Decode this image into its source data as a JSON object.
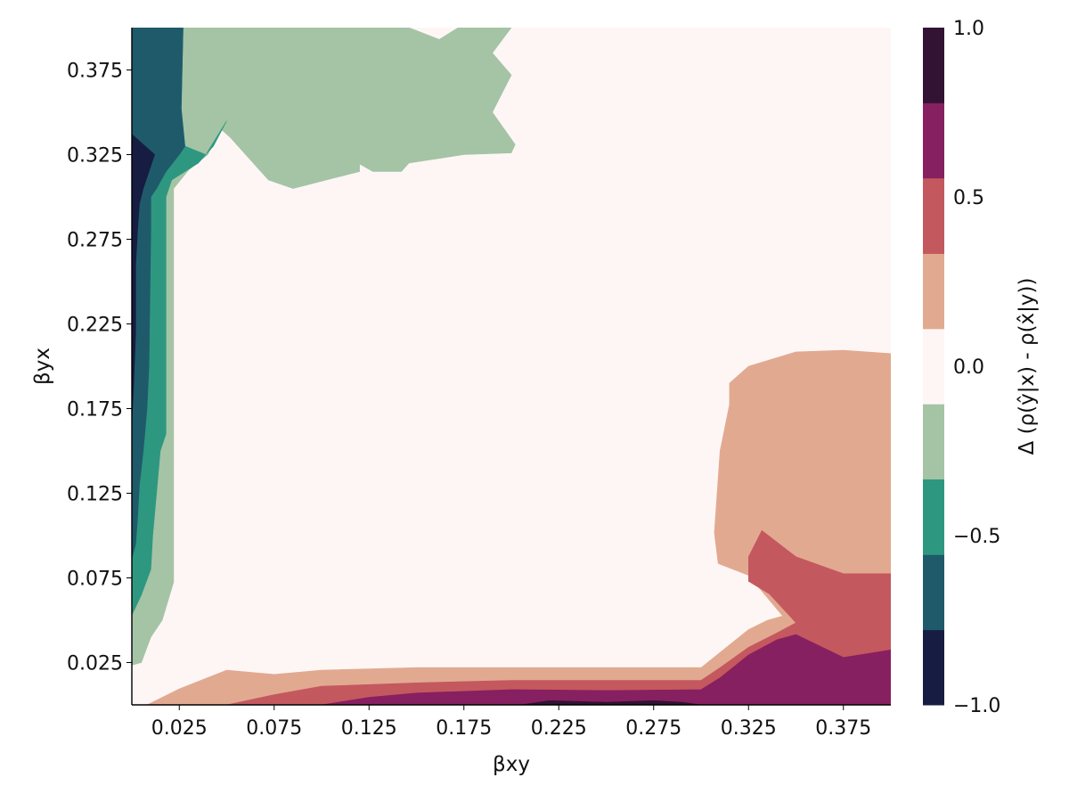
{
  "chart_data": {
    "type": "contour",
    "xlabel": "βxy",
    "ylabel": "βyx",
    "xlim": [
      0.0,
      0.4
    ],
    "ylim": [
      0.0,
      0.4
    ],
    "x_ticks": [
      "0.025",
      "0.075",
      "0.125",
      "0.175",
      "0.225",
      "0.275",
      "0.325",
      "0.375"
    ],
    "y_ticks": [
      "0.025",
      "0.075",
      "0.125",
      "0.175",
      "0.225",
      "0.275",
      "0.325",
      "0.375"
    ],
    "colorbar": {
      "label": "Δ (ρ(ŷ|x) - ρ(x̂|y))",
      "range": [
        -1.0,
        1.0
      ],
      "tick_labels": [
        "−1.0",
        "−0.5",
        "0.0",
        "0.5",
        "1.0"
      ],
      "levels": [
        -1.0,
        -0.778,
        -0.556,
        -0.333,
        -0.111,
        0.111,
        0.333,
        0.556,
        0.778,
        1.0
      ],
      "colors": [
        "#171c42",
        "#1f5a6b",
        "#2e9780",
        "#a4c4a5",
        "#fef6f5",
        "#e2a991",
        "#c4585f",
        "#872060",
        "#331334"
      ]
    },
    "regions": [
      {
        "name": "upper-green",
        "level": -0.222,
        "points": [
          [
            0.083,
            0.4
          ],
          [
            0.094,
            0.34
          ],
          [
            0.102,
            0.331
          ],
          [
            0.127,
            0.315
          ],
          [
            0.142,
            0.315
          ],
          [
            0.146,
            0.32
          ],
          [
            0.175,
            0.325
          ],
          [
            0.2,
            0.326
          ],
          [
            0.202,
            0.331
          ],
          [
            0.19,
            0.35
          ],
          [
            0.2,
            0.372
          ],
          [
            0.19,
            0.385
          ],
          [
            0.2,
            0.4
          ],
          [
            0.2,
            0.4
          ],
          [
            0.172,
            0.4
          ],
          [
            0.162,
            0.393
          ],
          [
            0.146,
            0.4
          ]
        ]
      },
      {
        "name": "upper-teal",
        "level": -0.444,
        "points": [
          [
            0.027,
            0.4
          ],
          [
            0.026,
            0.352
          ],
          [
            0.028,
            0.33
          ],
          [
            0.039,
            0.325
          ],
          [
            0.05,
            0.345
          ],
          [
            0.07,
            0.332
          ],
          [
            0.1,
            0.33
          ],
          [
            0.102,
            0.34
          ],
          [
            0.094,
            0.35
          ],
          [
            0.081,
            0.355
          ],
          [
            0.073,
            0.36
          ],
          [
            0.072,
            0.4
          ]
        ]
      },
      {
        "name": "left-green-strip",
        "level": -0.222,
        "points": [
          [
            0.0,
            0.0235
          ],
          [
            0.0,
            0.4
          ],
          [
            0.12,
            0.4
          ],
          [
            0.12,
            0.315
          ],
          [
            0.085,
            0.305
          ],
          [
            0.072,
            0.31
          ],
          [
            0.06,
            0.325
          ],
          [
            0.052,
            0.335
          ],
          [
            0.047,
            0.34
          ],
          [
            0.04,
            0.325
          ],
          [
            0.03,
            0.316
          ],
          [
            0.022,
            0.305
          ],
          [
            0.022,
            0.25
          ],
          [
            0.022,
            0.0725
          ],
          [
            0.02,
            0.065
          ],
          [
            0.016,
            0.05
          ],
          [
            0.01,
            0.04
          ],
          [
            0.005,
            0.025
          ]
        ]
      },
      {
        "name": "left-teal-strip",
        "level": -0.444,
        "points": [
          [
            0.0,
            0.053
          ],
          [
            0.0,
            0.4
          ],
          [
            0.027,
            0.4
          ],
          [
            0.026,
            0.352
          ],
          [
            0.028,
            0.33
          ],
          [
            0.039,
            0.325
          ],
          [
            0.05,
            0.345
          ],
          [
            0.043,
            0.33
          ],
          [
            0.035,
            0.32
          ],
          [
            0.021,
            0.31
          ],
          [
            0.018,
            0.3
          ],
          [
            0.018,
            0.16
          ],
          [
            0.015,
            0.15
          ],
          [
            0.013,
            0.125
          ],
          [
            0.011,
            0.1
          ],
          [
            0.01,
            0.08
          ],
          [
            0.005,
            0.065
          ]
        ]
      },
      {
        "name": "left-dark-teal-strip",
        "level": -0.667,
        "points": [
          [
            0.0,
            0.0865
          ],
          [
            0.0,
            0.4
          ],
          [
            0.027,
            0.4
          ],
          [
            0.026,
            0.352
          ],
          [
            0.028,
            0.33
          ],
          [
            0.025,
            0.325
          ],
          [
            0.018,
            0.315
          ],
          [
            0.013,
            0.305
          ],
          [
            0.01,
            0.3
          ],
          [
            0.01,
            0.28
          ],
          [
            0.009,
            0.2
          ],
          [
            0.008,
            0.175
          ],
          [
            0.006,
            0.15
          ],
          [
            0.004,
            0.13
          ],
          [
            0.003,
            0.11
          ],
          [
            0.002,
            0.095
          ]
        ]
      },
      {
        "name": "left-navy-strip",
        "level": -0.889,
        "points": [
          [
            0.0,
            0.167
          ],
          [
            0.0,
            0.337
          ],
          [
            0.006,
            0.331
          ],
          [
            0.012,
            0.325
          ],
          [
            0.009,
            0.315
          ],
          [
            0.006,
            0.305
          ],
          [
            0.004,
            0.296
          ],
          [
            0.003,
            0.28
          ],
          [
            0.002,
            0.26
          ],
          [
            0.002,
            0.22
          ],
          [
            0.001,
            0.19
          ]
        ]
      },
      {
        "name": "bottom-peach-band",
        "level": 0.222,
        "points": [
          [
            0.008,
            0.0
          ],
          [
            0.025,
            0.0095
          ],
          [
            0.05,
            0.0205
          ],
          [
            0.075,
            0.018
          ],
          [
            0.1,
            0.0205
          ],
          [
            0.15,
            0.022
          ],
          [
            0.2,
            0.022
          ],
          [
            0.25,
            0.022
          ],
          [
            0.3,
            0.022
          ],
          [
            0.325,
            0.0445
          ],
          [
            0.335,
            0.05
          ],
          [
            0.343,
            0.0525
          ],
          [
            0.325,
            0.0765
          ],
          [
            0.309,
            0.0835
          ],
          [
            0.307,
            0.1015
          ],
          [
            0.31,
            0.15
          ],
          [
            0.315,
            0.1775
          ],
          [
            0.315,
            0.19
          ],
          [
            0.325,
            0.2
          ],
          [
            0.35,
            0.2085
          ],
          [
            0.375,
            0.2095
          ],
          [
            0.4,
            0.2075
          ],
          [
            0.4,
            0.0
          ],
          [
            0.34,
            0.0
          ],
          [
            0.3,
            0.0
          ],
          [
            0.2,
            0.0
          ],
          [
            0.1,
            0.0
          ],
          [
            0.05,
            0.0
          ]
        ]
      },
      {
        "name": "bottom-red-band",
        "level": 0.444,
        "points": [
          [
            0.05,
            0.0
          ],
          [
            0.075,
            0.006
          ],
          [
            0.1,
            0.011
          ],
          [
            0.15,
            0.013
          ],
          [
            0.2,
            0.0145
          ],
          [
            0.25,
            0.0145
          ],
          [
            0.3,
            0.0145
          ],
          [
            0.31,
            0.022
          ],
          [
            0.325,
            0.034
          ],
          [
            0.34,
            0.0425
          ],
          [
            0.35,
            0.0485
          ],
          [
            0.336,
            0.0655
          ],
          [
            0.325,
            0.073
          ],
          [
            0.325,
            0.0875
          ],
          [
            0.332,
            0.103
          ],
          [
            0.35,
            0.0875
          ],
          [
            0.375,
            0.0775
          ],
          [
            0.4,
            0.0775
          ],
          [
            0.4,
            0.0
          ],
          [
            0.34,
            0.0
          ],
          [
            0.3,
            0.0
          ]
        ]
      },
      {
        "name": "bottom-plum-band",
        "level": 0.667,
        "points": [
          [
            0.1,
            0.0
          ],
          [
            0.125,
            0.0045
          ],
          [
            0.15,
            0.007
          ],
          [
            0.2,
            0.009
          ],
          [
            0.25,
            0.0085
          ],
          [
            0.3,
            0.009
          ],
          [
            0.31,
            0.016
          ],
          [
            0.325,
            0.0295
          ],
          [
            0.34,
            0.0385
          ],
          [
            0.35,
            0.0415
          ],
          [
            0.375,
            0.028
          ],
          [
            0.4,
            0.0325
          ],
          [
            0.4,
            0.0
          ],
          [
            0.3,
            0.0
          ]
        ]
      },
      {
        "name": "bottom-dark-plum-band",
        "level": 0.889,
        "points": [
          [
            0.2,
            0.0
          ],
          [
            0.205,
            0.0
          ],
          [
            0.22,
            0.0025
          ],
          [
            0.25,
            0.0015
          ],
          [
            0.275,
            0.0025
          ],
          [
            0.29,
            0.0015
          ],
          [
            0.3,
            0.0
          ]
        ]
      }
    ]
  }
}
